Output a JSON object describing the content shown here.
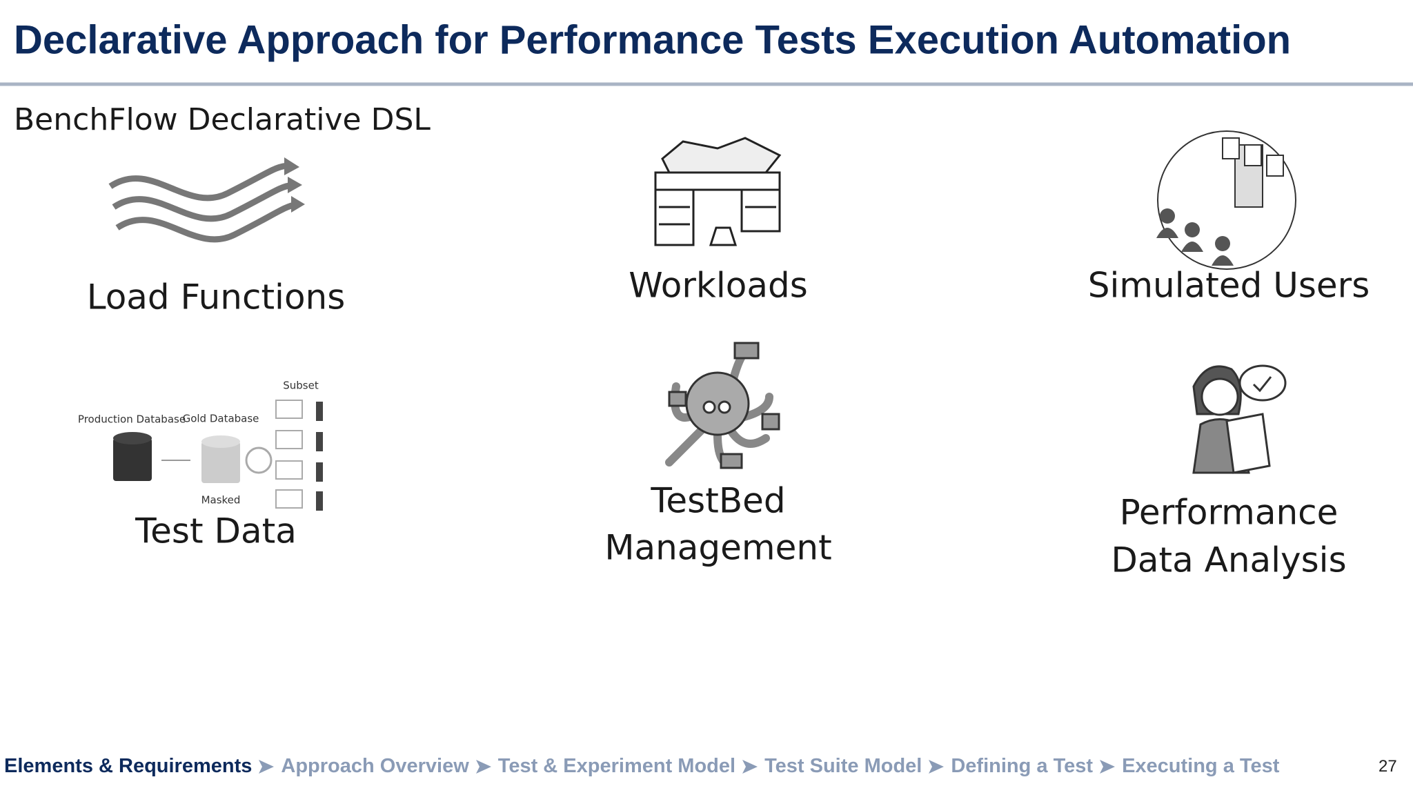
{
  "header": {
    "title": "Declarative Approach for Performance Tests Execution Automation"
  },
  "subtitle": "BenchFlow Declarative DSL",
  "items": [
    {
      "lines": [
        "Load Functions"
      ]
    },
    {
      "lines": [
        "Workloads"
      ]
    },
    {
      "lines": [
        "Simulated Users"
      ]
    },
    {
      "lines": [
        "Test Data"
      ],
      "diagram": {
        "source": "Production Database",
        "gold": "Gold Database",
        "masked": "Masked",
        "subset": "Subset"
      }
    },
    {
      "lines": [
        "TestBed",
        "Management"
      ]
    },
    {
      "lines": [
        "Performance",
        "Data Analysis"
      ]
    }
  ],
  "breadcrumb": [
    "Elements & Requirements",
    "Approach Overview",
    "Test & Experiment Model",
    "Test Suite Model",
    "Defining a Test",
    "Executing a Test"
  ],
  "page_number": "27"
}
